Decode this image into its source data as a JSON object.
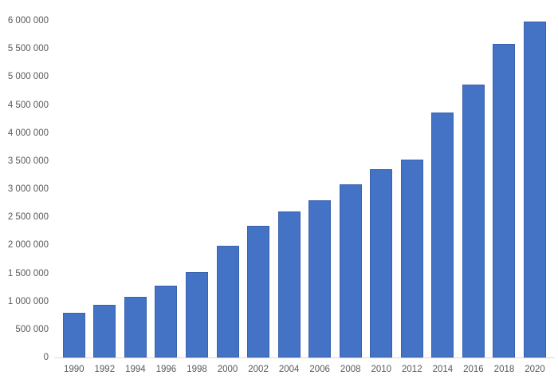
{
  "chart_data": {
    "type": "bar",
    "title": "",
    "xlabel": "",
    "ylabel": "",
    "grid": "off",
    "legend": "none",
    "background": "#FFFFFF",
    "bar_color": "#4472C4",
    "bar_border_color": "#3A62AE",
    "tick_text_color": "#595959",
    "axis_line_color": "#D9D9D9",
    "ylim": [
      0,
      6000000
    ],
    "y_tick_step": 500000,
    "y_tick_labels": [
      "0",
      "500 000",
      "1 000 000",
      "1 500 000",
      "2 000 000",
      "2 500 000",
      "3 000 000",
      "3 500 000",
      "4 000 000",
      "4 500 000",
      "5 000 000",
      "5 500 000",
      "6 000 000"
    ],
    "categories": [
      "1990",
      "1992",
      "1994",
      "1996",
      "1998",
      "2000",
      "2002",
      "2004",
      "2006",
      "2008",
      "2010",
      "2012",
      "2014",
      "2016",
      "2018",
      "2020"
    ],
    "values": [
      790000,
      940000,
      1080000,
      1280000,
      1520000,
      1990000,
      2340000,
      2600000,
      2800000,
      3080000,
      3350000,
      3520000,
      4360000,
      4860000,
      5590000,
      5990000
    ]
  }
}
